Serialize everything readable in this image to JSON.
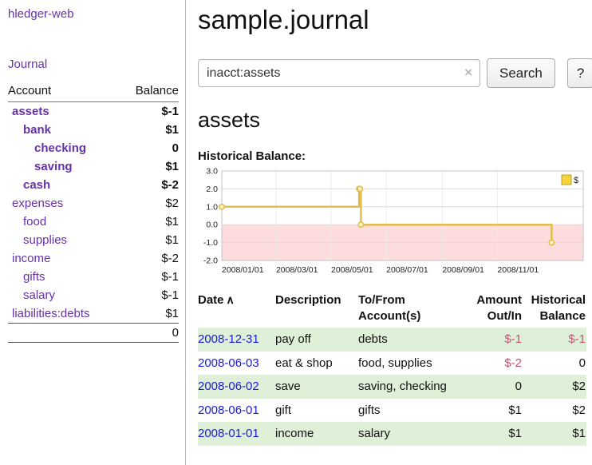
{
  "colors": {
    "link_purple": "#6632a8",
    "link_blue": "#1a1ad6",
    "negative_strong": "#861b2c",
    "negative_soft": "#bf5772",
    "row_green": "#dff0d8",
    "chart_line": "#e3bd4a",
    "chart_negative_bg": "#fcdcdc",
    "legend_square": "#f5d33c"
  },
  "sidebar": {
    "app_title": "hledger-web",
    "journal_link": "Journal",
    "accounts": {
      "header_account": "Account",
      "header_balance": "Balance",
      "rows": [
        {
          "name": "assets",
          "balance": "$-1",
          "indent": 0,
          "bold": true,
          "balance_class": "neg-strong"
        },
        {
          "name": "bank",
          "balance": "$1",
          "indent": 1,
          "bold": true,
          "balance_class": ""
        },
        {
          "name": "checking",
          "balance": "0",
          "indent": 2,
          "bold": true,
          "balance_class": ""
        },
        {
          "name": "saving",
          "balance": "$1",
          "indent": 2,
          "bold": true,
          "balance_class": ""
        },
        {
          "name": "cash",
          "balance": "$-2",
          "indent": 1,
          "bold": true,
          "balance_class": "neg-strong"
        },
        {
          "name": "expenses",
          "balance": "$2",
          "indent": 0,
          "bold": false,
          "balance_class": ""
        },
        {
          "name": "food",
          "balance": "$1",
          "indent": 1,
          "bold": false,
          "balance_class": ""
        },
        {
          "name": "supplies",
          "balance": "$1",
          "indent": 1,
          "bold": false,
          "balance_class": ""
        },
        {
          "name": "income",
          "balance": "$-2",
          "indent": 0,
          "bold": false,
          "balance_class": "neg-soft"
        },
        {
          "name": "gifts",
          "balance": "$-1",
          "indent": 1,
          "bold": false,
          "balance_class": "neg-soft"
        },
        {
          "name": "salary",
          "balance": "$-1",
          "indent": 1,
          "bold": false,
          "balance_class": "neg-soft"
        },
        {
          "name": "liabilities:debts",
          "balance": "$1",
          "indent": 0,
          "bold": false,
          "balance_class": ""
        }
      ],
      "total": "0"
    }
  },
  "main": {
    "page_title": "sample.journal",
    "search": {
      "value": "inacct:assets",
      "clear_icon": "×",
      "button_label": "Search",
      "help_label": "?"
    },
    "account_heading": "assets",
    "chart_label": "Historical Balance:"
  },
  "chart_data": {
    "type": "line",
    "step": true,
    "title": "Historical Balance",
    "legend": [
      {
        "label": "$"
      }
    ],
    "legend_position": "top-right",
    "grid": true,
    "ylim": [
      -2,
      3
    ],
    "yticks": [
      3,
      2,
      1,
      0,
      -1,
      -2
    ],
    "xlim": [
      "2008-01-01",
      "2009-02-04"
    ],
    "xticks": [
      {
        "date": "2008-01-01",
        "label": "2008/01/01"
      },
      {
        "date": "2008-03-01",
        "label": "2008/03/01"
      },
      {
        "date": "2008-05-01",
        "label": "2008/05/01"
      },
      {
        "date": "2008-07-01",
        "label": "2008/07/01"
      },
      {
        "date": "2008-09-01",
        "label": "2008/09/01"
      },
      {
        "date": "2008-11-01",
        "label": "2008/11/01"
      }
    ],
    "series": [
      {
        "name": "$",
        "points": [
          [
            "2008-01-01",
            1
          ],
          [
            "2008-06-01",
            2
          ],
          [
            "2008-06-02",
            2
          ],
          [
            "2008-06-03",
            0
          ],
          [
            "2008-12-31",
            -1
          ]
        ]
      }
    ]
  },
  "register": {
    "headers": [
      {
        "label": "Date",
        "sort_icon": "∧"
      },
      {
        "label": "Description"
      },
      {
        "label": "To/From Account(s)"
      },
      {
        "label": "Amount Out/In"
      },
      {
        "label": "Historical Balance"
      }
    ],
    "rows": [
      {
        "date": "2008-12-31",
        "description": "pay off",
        "accounts": "debts",
        "amount": "$-1",
        "amount_negative": true,
        "balance": "$-1",
        "balance_negative": true
      },
      {
        "date": "2008-06-03",
        "description": "eat & shop",
        "accounts": "food, supplies",
        "amount": "$-2",
        "amount_negative": true,
        "balance": "0",
        "balance_negative": false
      },
      {
        "date": "2008-06-02",
        "description": "save",
        "accounts": "saving, checking",
        "amount": "0",
        "amount_negative": false,
        "balance": "$2",
        "balance_negative": false
      },
      {
        "date": "2008-06-01",
        "description": "gift",
        "accounts": "gifts",
        "amount": "$1",
        "amount_negative": false,
        "balance": "$2",
        "balance_negative": false
      },
      {
        "date": "2008-01-01",
        "description": "income",
        "accounts": "salary",
        "amount": "$1",
        "amount_negative": false,
        "balance": "$1",
        "balance_negative": false
      }
    ]
  }
}
